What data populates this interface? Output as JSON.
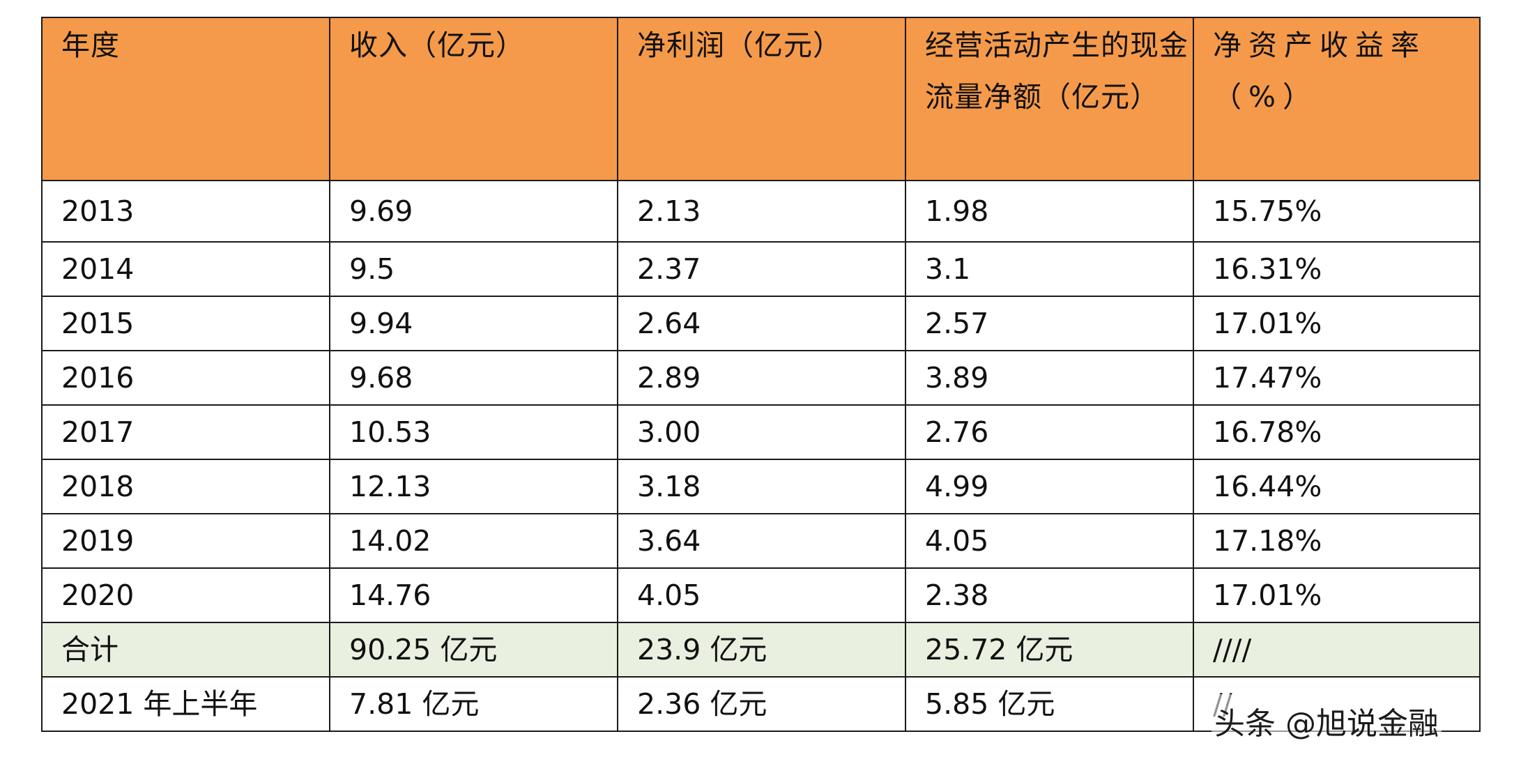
{
  "table": {
    "headers": [
      "年度",
      "收入（亿元）",
      "净利润（亿元）",
      "经营活动产生的现金流量净额（亿元）",
      "净资产收益率（%）"
    ],
    "rows": [
      [
        "2013",
        "9.69",
        "2.13",
        "1.98",
        "15.75%"
      ],
      [
        "2014",
        "9.5",
        "2.37",
        "3.1",
        "16.31%"
      ],
      [
        "2015",
        "9.94",
        "2.64",
        "2.57",
        "17.01%"
      ],
      [
        "2016",
        "9.68",
        "2.89",
        "3.89",
        "17.47%"
      ],
      [
        "2017",
        "10.53",
        "3.00",
        "2.76",
        "16.78%"
      ],
      [
        "2018",
        "12.13",
        "3.18",
        "4.99",
        "16.44%"
      ],
      [
        "2019",
        "14.02",
        "3.64",
        "4.05",
        "17.18%"
      ],
      [
        "2020",
        "14.76",
        "4.05",
        "2.38",
        "17.01%"
      ]
    ],
    "total": [
      "合计",
      "90.25 亿元",
      "23.9 亿元",
      "25.72 亿元",
      "////"
    ],
    "half_year": [
      "2021 年上半年",
      "7.81 亿元",
      "2.36 亿元",
      "5.85 亿元",
      "//"
    ]
  },
  "colors": {
    "header_bg": "#f59a4a",
    "total_bg": "#eaf0e0"
  },
  "watermark": "头条 @旭说金融"
}
